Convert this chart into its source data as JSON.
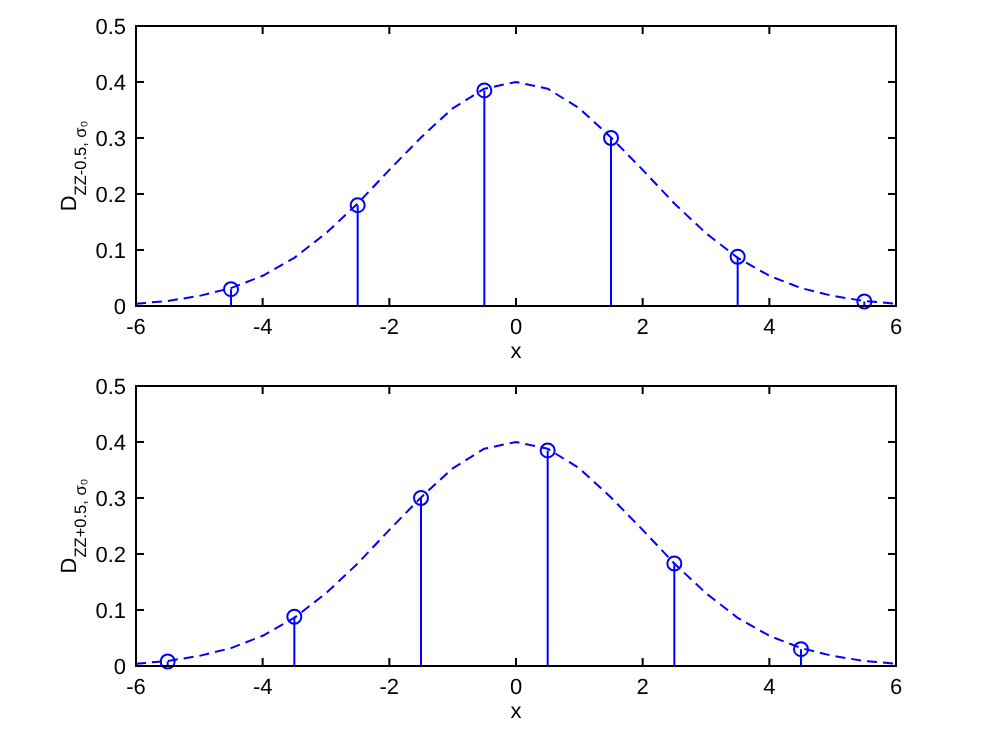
{
  "chart_data": [
    {
      "type": "lollipop",
      "ylabel": "D$_{ZZ-0.5, σ₀}$",
      "xlabel": "x",
      "xlim": [
        -6,
        6
      ],
      "xticks": [
        -6,
        -4,
        -2,
        0,
        2,
        4,
        6
      ],
      "ylim": [
        0,
        0.5
      ],
      "yticks": [
        0,
        0.1,
        0.2,
        0.3,
        0.4,
        0.5
      ],
      "grid": false,
      "series": [
        {
          "type": "line",
          "line_style": "dashed",
          "marker": "none",
          "color": "#0000ff",
          "x": [
            -6,
            -5.5,
            -5,
            -4.5,
            -4,
            -3.5,
            -3,
            -2.5,
            -2,
            -1.5,
            -1,
            -0.5,
            0,
            0.5,
            1,
            1.5,
            2,
            2.5,
            3,
            3.5,
            4,
            4.5,
            5,
            5.5,
            6
          ],
          "values": [
            0.004,
            0.009,
            0.018,
            0.032,
            0.054,
            0.086,
            0.13,
            0.183,
            0.243,
            0.301,
            0.353,
            0.388,
            0.4,
            0.388,
            0.353,
            0.301,
            0.243,
            0.183,
            0.13,
            0.086,
            0.054,
            0.032,
            0.018,
            0.009,
            0.004
          ]
        },
        {
          "marker": "circle",
          "color": "#0000ff",
          "x": [
            -4.5,
            -2.5,
            -0.5,
            1.5,
            3.5,
            5.5
          ],
          "values": [
            0.03,
            0.18,
            0.385,
            0.3,
            0.088,
            0.008
          ]
        }
      ]
    },
    {
      "type": "lollipop",
      "ylabel": "D$_{ZZ+0.5, σ₀}$",
      "xlabel": "x",
      "xlim": [
        -6,
        6
      ],
      "xticks": [
        -6,
        -4,
        -2,
        0,
        2,
        4,
        6
      ],
      "ylim": [
        0,
        0.5
      ],
      "yticks": [
        0,
        0.1,
        0.2,
        0.3,
        0.4,
        0.5
      ],
      "grid": false,
      "series": [
        {
          "type": "line",
          "line_style": "dashed",
          "marker": "none",
          "color": "#0000ff",
          "x": [
            -6,
            -5.5,
            -5,
            -4.5,
            -4,
            -3.5,
            -3,
            -2.5,
            -2,
            -1.5,
            -1,
            -0.5,
            0,
            0.5,
            1,
            1.5,
            2,
            2.5,
            3,
            3.5,
            4,
            4.5,
            5,
            5.5,
            6
          ],
          "values": [
            0.004,
            0.009,
            0.018,
            0.032,
            0.054,
            0.086,
            0.13,
            0.183,
            0.243,
            0.301,
            0.353,
            0.388,
            0.4,
            0.388,
            0.353,
            0.301,
            0.243,
            0.183,
            0.13,
            0.086,
            0.054,
            0.032,
            0.018,
            0.009,
            0.004
          ]
        },
        {
          "marker": "circle",
          "color": "#0000ff",
          "x": [
            -5.5,
            -3.5,
            -1.5,
            0.5,
            2.5,
            4.5
          ],
          "values": [
            0.008,
            0.088,
            0.3,
            0.385,
            0.183,
            0.03
          ]
        }
      ]
    }
  ]
}
